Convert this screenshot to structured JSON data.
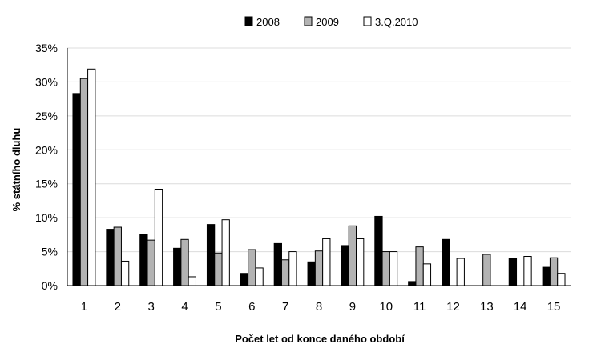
{
  "chart_data": {
    "type": "bar",
    "categories": [
      "1",
      "2",
      "3",
      "4",
      "5",
      "6",
      "7",
      "8",
      "9",
      "10",
      "11",
      "12",
      "13",
      "14",
      "15"
    ],
    "series": [
      {
        "name": "2008",
        "color": "#000000",
        "values": [
          28.3,
          8.3,
          7.6,
          5.5,
          9.0,
          1.8,
          6.2,
          3.5,
          5.9,
          10.2,
          0.6,
          6.8,
          null,
          4.0,
          2.7
        ]
      },
      {
        "name": "2009",
        "color": "#b3b3b3",
        "values": [
          30.5,
          8.6,
          6.7,
          6.8,
          4.8,
          5.3,
          3.8,
          5.1,
          8.8,
          5.0,
          5.7,
          null,
          4.6,
          null,
          4.1
        ]
      },
      {
        "name": "3.Q.2010",
        "color": "#ffffff",
        "values": [
          31.9,
          3.6,
          14.2,
          1.3,
          9.7,
          2.6,
          5.0,
          6.9,
          6.9,
          5.0,
          3.2,
          4.0,
          null,
          4.3,
          1.8
        ]
      }
    ],
    "ylim": [
      0,
      35
    ],
    "yticks": [
      0,
      5,
      10,
      15,
      20,
      25,
      30,
      35
    ],
    "ytick_labels": [
      "0%",
      "5%",
      "10%",
      "15%",
      "20%",
      "25%",
      "30%",
      "35%"
    ],
    "xlabel": "Počet let od konce daného období",
    "ylabel": "% státního dluhu",
    "title": "",
    "grid": "horizontal",
    "legend": "top-center"
  }
}
